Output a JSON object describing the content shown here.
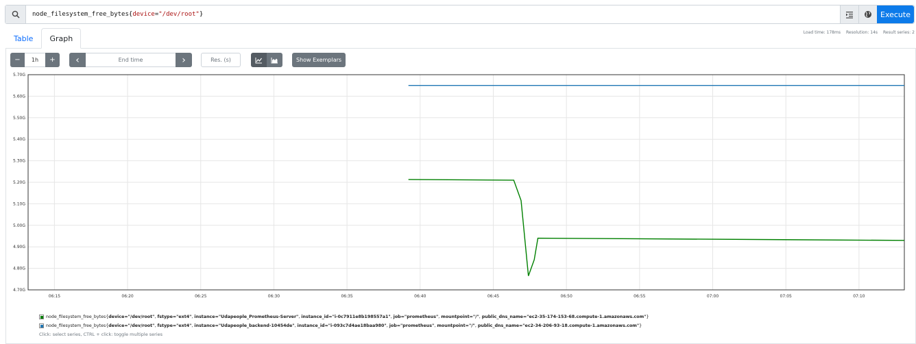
{
  "query": {
    "metric": "node_filesystem_free_bytes",
    "label_key": "device",
    "label_value": "\"/dev/root\"",
    "execute_label": "Execute"
  },
  "tabs": [
    {
      "label": "Table"
    },
    {
      "label": "Graph"
    }
  ],
  "stats": {
    "load_time": "Load time: 178ms",
    "resolution": "Resolution: 14s",
    "result_series": "Result series: 2"
  },
  "controls": {
    "minus": "−",
    "range": "1h",
    "plus": "+",
    "prev": "‹",
    "end_time_placeholder": "End time",
    "next": "›",
    "res_placeholder": "Res. (s)",
    "exemplars_label": "Show Exemplars"
  },
  "chart_data": {
    "type": "line",
    "y_ticks": [
      "4.70G",
      "4.80G",
      "4.90G",
      "5.00G",
      "5.10G",
      "5.20G",
      "5.30G",
      "5.40G",
      "5.50G",
      "5.60G",
      "5.70G"
    ],
    "ylim": [
      4.7,
      5.7
    ],
    "x_ticks": [
      "06:15",
      "06:20",
      "06:25",
      "06:30",
      "06:35",
      "06:40",
      "06:45",
      "06:50",
      "06:55",
      "07:00",
      "07:05",
      "07:10"
    ],
    "xlim_minutes": [
      13.2,
      73.1
    ],
    "x_tick_minutes": [
      15,
      20,
      25,
      30,
      35,
      40,
      45,
      50,
      55,
      60,
      65,
      70
    ],
    "series": [
      {
        "color": "#1f77b4",
        "points": [
          [
            39.2,
            5.65
          ],
          [
            73.1,
            5.65
          ]
        ]
      },
      {
        "color": "#008000",
        "points": [
          [
            39.2,
            5.213
          ],
          [
            46.4,
            5.21
          ],
          [
            46.9,
            5.115
          ],
          [
            47.4,
            4.765
          ],
          [
            47.8,
            4.84
          ],
          [
            48.05,
            4.94
          ],
          [
            73.1,
            4.93
          ]
        ]
      }
    ]
  },
  "legend": {
    "items": [
      {
        "color": "#008000",
        "metric": "node_filesystem_free_bytes",
        "label_device": "device=\"/dev/root\"",
        "label_fstype": "fstype=\"ext4\"",
        "label_instance": "instance=\"Udapeople_Prometheus-Server\"",
        "label_instance_id": "instance_id=\"i-0c7911e8b198557a1\"",
        "label_job": "job=\"prometheus\"",
        "label_mountpoint": "mountpoint=\"/\"",
        "label_dns": "public_dns_name=\"ec2-35-174-153-68.compute-1.amazonaws.com\""
      },
      {
        "color": "#1f77b4",
        "metric": "node_filesystem_free_bytes",
        "label_device": "device=\"/dev/root\"",
        "label_fstype": "fstype=\"ext4\"",
        "label_instance": "instance=\"Udapeople_backend-10454de\"",
        "label_instance_id": "instance_id=\"i-093c7d4ae18baa980\"",
        "label_job": "job=\"prometheus\"",
        "label_mountpoint": "mountpoint=\"/\"",
        "label_dns": "public_dns_name=\"ec2-34-206-93-18.compute-1.amazonaws.com\""
      }
    ],
    "hint": "Click: select series, CTRL + click: toggle multiple series"
  }
}
